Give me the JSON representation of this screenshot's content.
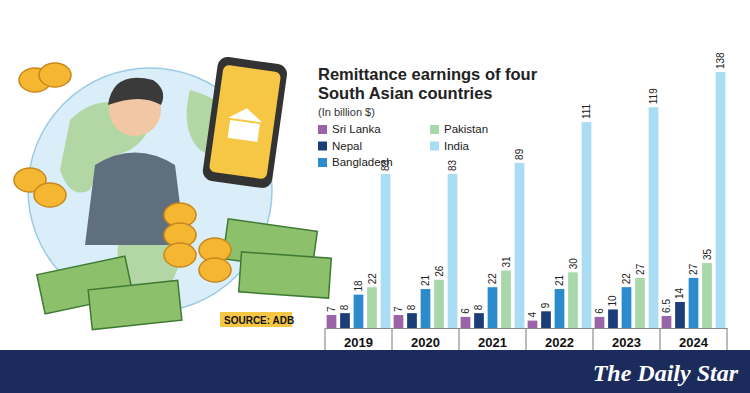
{
  "chart_data": {
    "type": "bar",
    "title": "Remittance earnings of four South Asian countries",
    "subtitle": "(In billion $)",
    "source": "SOURCE: ADB",
    "credit": "The Daily Star",
    "categories": [
      "2019",
      "2020",
      "2021",
      "2022",
      "2023",
      "2024"
    ],
    "series": [
      {
        "name": "Sri Lanka",
        "color": "#9a65a8",
        "values": [
          7,
          7,
          6,
          4,
          6,
          6.5
        ]
      },
      {
        "name": "Nepal",
        "color": "#1c3e78",
        "values": [
          8,
          8,
          8,
          9,
          10,
          14
        ]
      },
      {
        "name": "Bangladesh",
        "color": "#2b8bcc",
        "values": [
          18,
          21,
          22,
          21,
          22,
          27
        ]
      },
      {
        "name": "Pakistan",
        "color": "#a8d8aa",
        "values": [
          22,
          26,
          31,
          30,
          27,
          35
        ]
      },
      {
        "name": "India",
        "color": "#aadcf4",
        "values": [
          83,
          83,
          89,
          111,
          119,
          138
        ]
      }
    ],
    "data_labels": true,
    "tick_labels": "x",
    "legend": "top-left"
  }
}
